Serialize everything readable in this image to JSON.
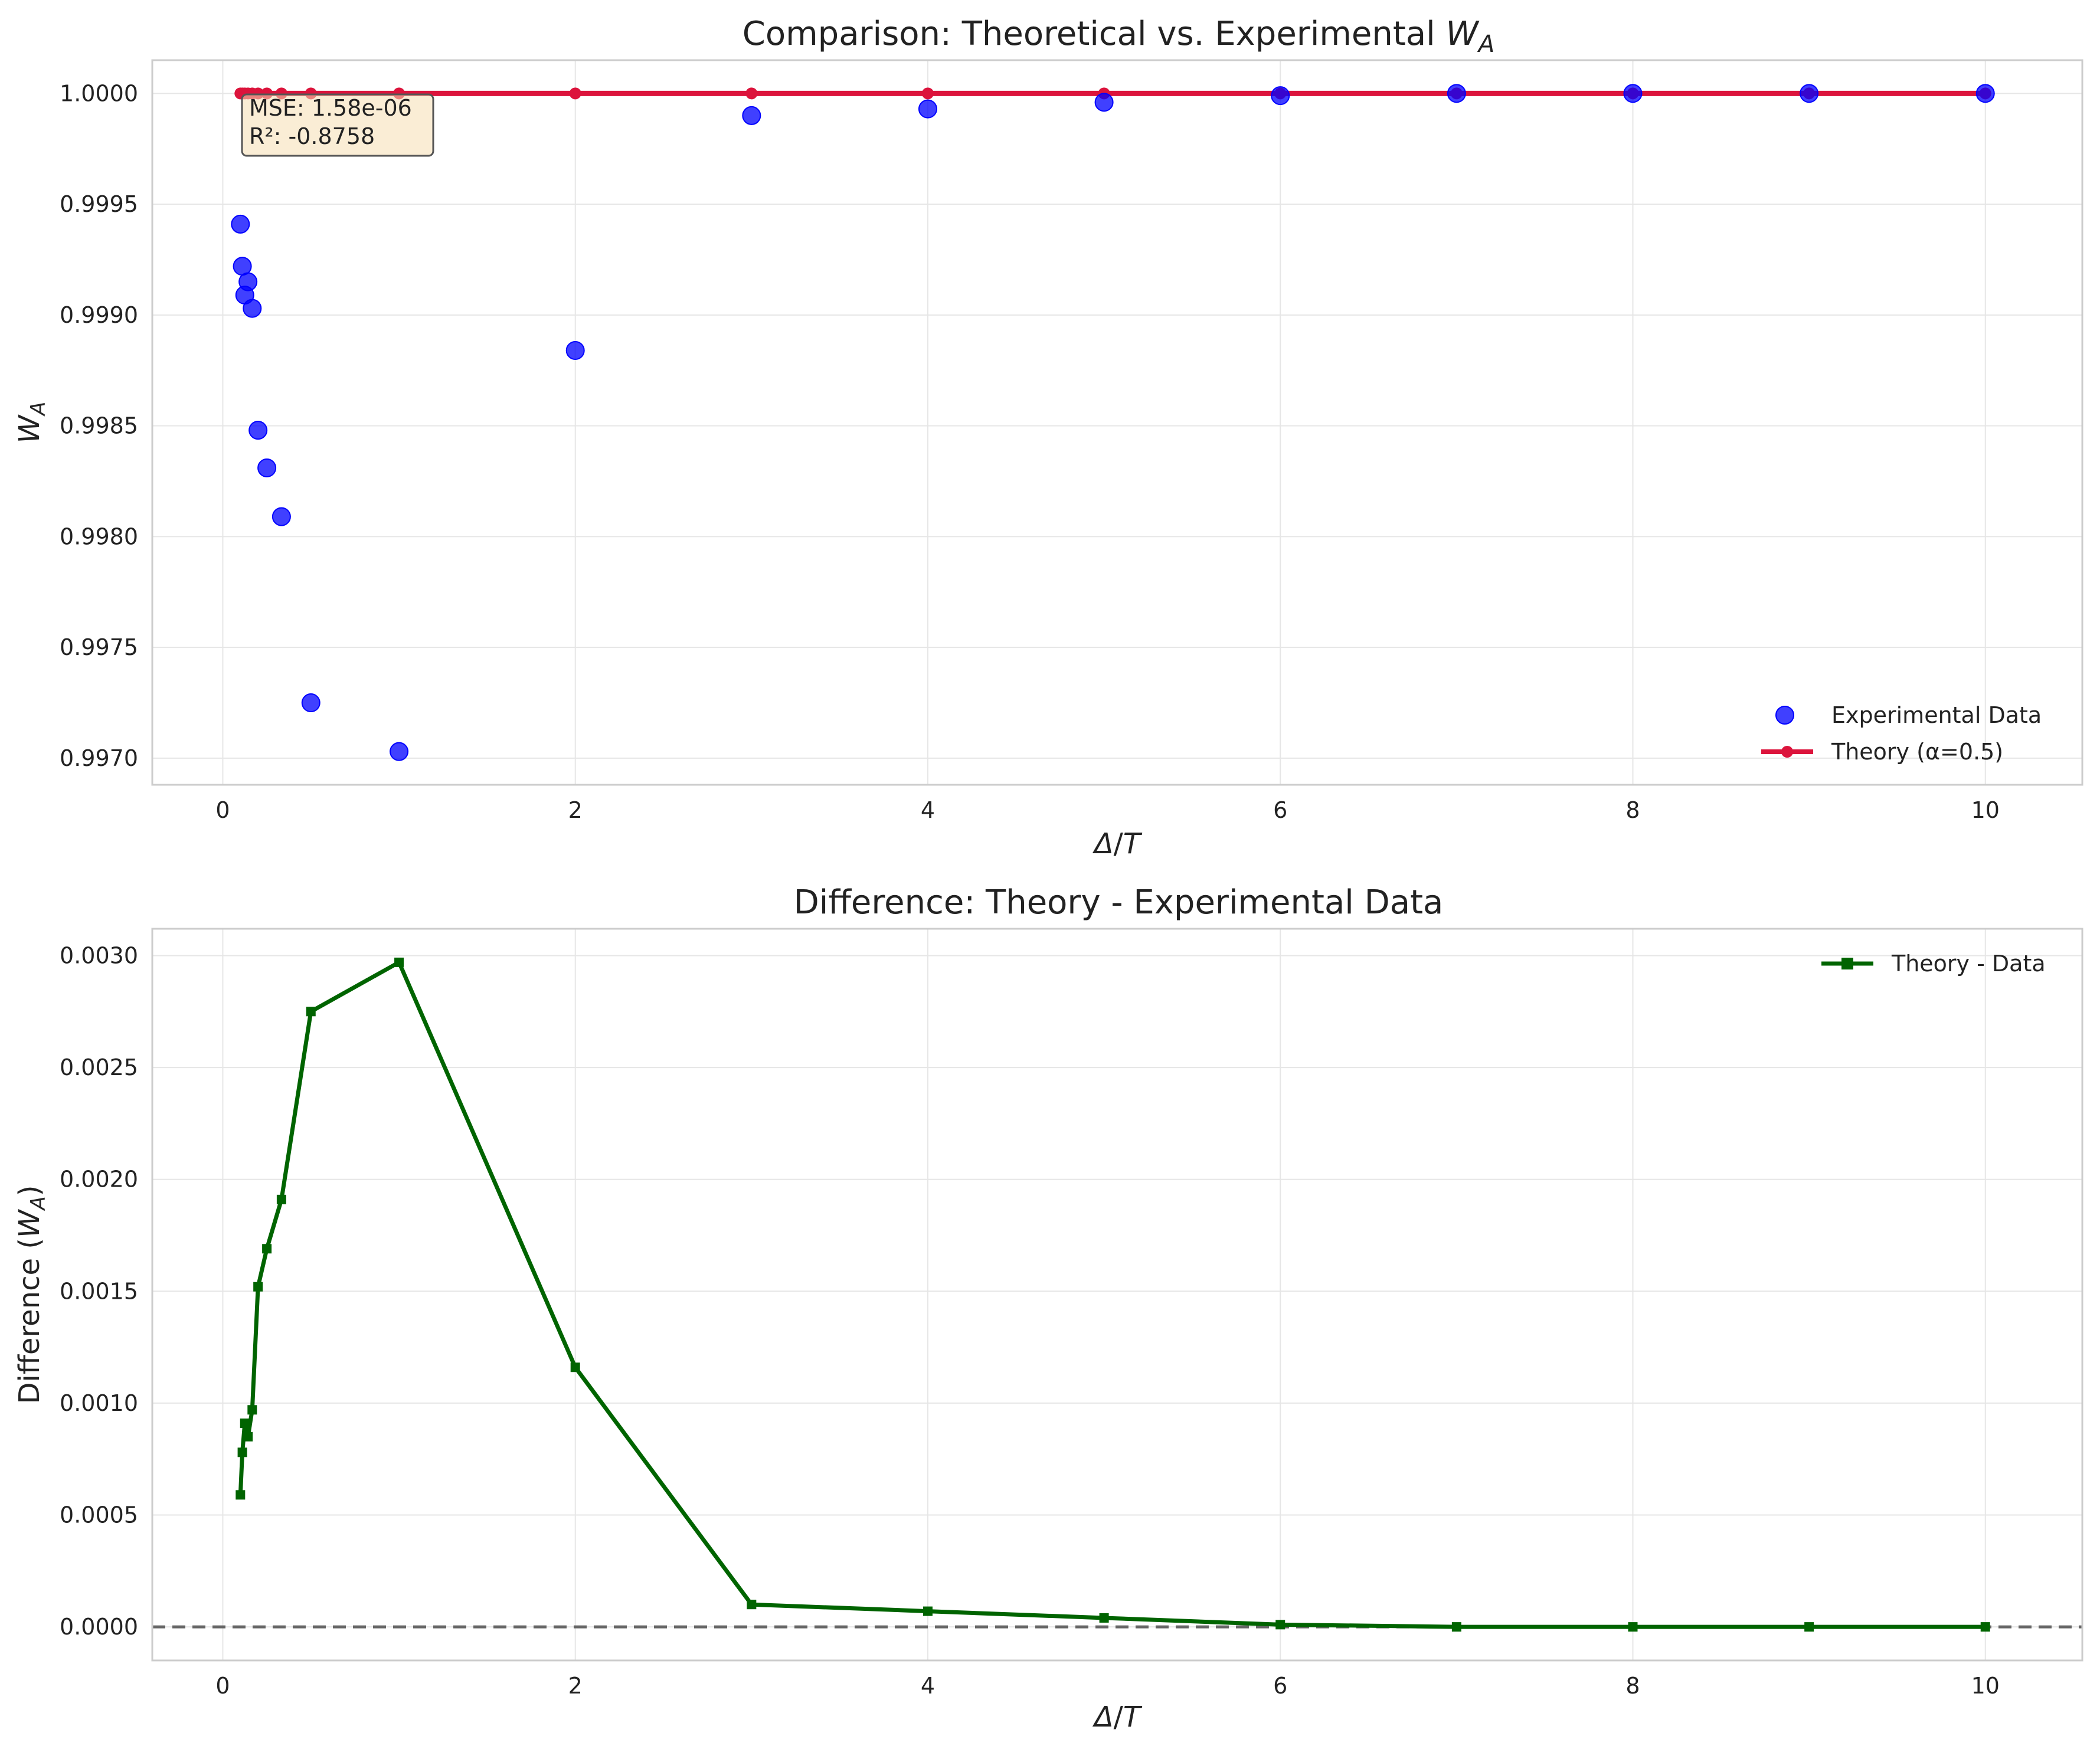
{
  "chart_data": [
    {
      "type": "scatter",
      "title": "Comparison: Theoretical vs. Experimental W_A",
      "title_text": "Comparison: Theoretical vs. Experimental ",
      "title_math": {
        "base": "W",
        "sub": "A"
      },
      "xlabel_math": {
        "delta": "Δ",
        "sep": "/",
        "T": "T"
      },
      "ylabel_math": {
        "base": "W",
        "sub": "A"
      },
      "xlim": [
        -0.4,
        10.55
      ],
      "ylim": [
        0.99688,
        1.00015
      ],
      "xticks": [
        0,
        2,
        4,
        6,
        8,
        10
      ],
      "xtick_labels": [
        "0",
        "2",
        "4",
        "6",
        "8",
        "10"
      ],
      "yticks": [
        0.997,
        0.9975,
        0.998,
        0.9985,
        0.999,
        0.9995,
        1.0
      ],
      "ytick_labels": [
        "0.9970",
        "0.9975",
        "0.9980",
        "0.9985",
        "0.9990",
        "0.9995",
        "1.0000"
      ],
      "grid": true,
      "legend_position": "lower-right",
      "annotation": {
        "mse": "MSE: 1.58e-06",
        "r2": "R²: -0.8758",
        "position": "top-left"
      },
      "series": [
        {
          "name": "Experimental Data",
          "kind": "scatter",
          "color": "#0000ff",
          "x": [
            0.1,
            0.111,
            0.125,
            0.143,
            0.167,
            0.2,
            0.25,
            0.333,
            0.5,
            1,
            2,
            3,
            4,
            5,
            6,
            7,
            8,
            9,
            10
          ],
          "y": [
            0.99941,
            0.99922,
            0.99909,
            0.99915,
            0.99903,
            0.99848,
            0.99831,
            0.99809,
            0.99725,
            0.99703,
            0.99884,
            0.9999,
            0.99993,
            0.99996,
            0.99999,
            1.0,
            1.0,
            1.0,
            1.0
          ]
        },
        {
          "name": "Theory (α=0.5)",
          "kind": "line",
          "color": "#dc143c",
          "x": [
            0.1,
            0.111,
            0.125,
            0.143,
            0.167,
            0.2,
            0.25,
            0.333,
            0.5,
            1,
            2,
            3,
            4,
            5,
            6,
            7,
            8,
            9,
            10
          ],
          "y": [
            1.0,
            1.0,
            1.0,
            1.0,
            1.0,
            1.0,
            1.0,
            1.0,
            1.0,
            1.0,
            1.0,
            1.0,
            1.0,
            1.0,
            1.0,
            1.0,
            1.0,
            1.0,
            1.0
          ]
        }
      ]
    },
    {
      "type": "line",
      "title": "Difference: Theory - Experimental Data",
      "xlabel_math": {
        "delta": "Δ",
        "sep": "/",
        "T": "T"
      },
      "ylabel_text": "Difference (",
      "ylabel_math": {
        "base": "W",
        "sub": "A",
        "close": ")"
      },
      "xlim": [
        -0.4,
        10.55
      ],
      "ylim": [
        -0.00015,
        0.00312
      ],
      "xticks": [
        0,
        2,
        4,
        6,
        8,
        10
      ],
      "xtick_labels": [
        "0",
        "2",
        "4",
        "6",
        "8",
        "10"
      ],
      "yticks": [
        0.0,
        0.0005,
        0.001,
        0.0015,
        0.002,
        0.0025,
        0.003
      ],
      "ytick_labels": [
        "0.0000",
        "0.0005",
        "0.0010",
        "0.0015",
        "0.0020",
        "0.0025",
        "0.0030"
      ],
      "grid": true,
      "legend_position": "top-right",
      "reference_line": {
        "y": 0,
        "style": "dashed",
        "color": "#666666"
      },
      "series": [
        {
          "name": "Theory - Data",
          "kind": "line",
          "marker": "square",
          "color": "#006400",
          "x": [
            0.1,
            0.111,
            0.125,
            0.143,
            0.167,
            0.2,
            0.25,
            0.333,
            0.5,
            1,
            2,
            3,
            4,
            5,
            6,
            7,
            8,
            9,
            10
          ],
          "y": [
            0.00059,
            0.00078,
            0.00091,
            0.00085,
            0.00097,
            0.00152,
            0.00169,
            0.00191,
            0.00275,
            0.00297,
            0.00116,
            0.0001,
            7e-05,
            4e-05,
            1e-05,
            0.0,
            0.0,
            0.0,
            0.0
          ]
        }
      ]
    }
  ]
}
